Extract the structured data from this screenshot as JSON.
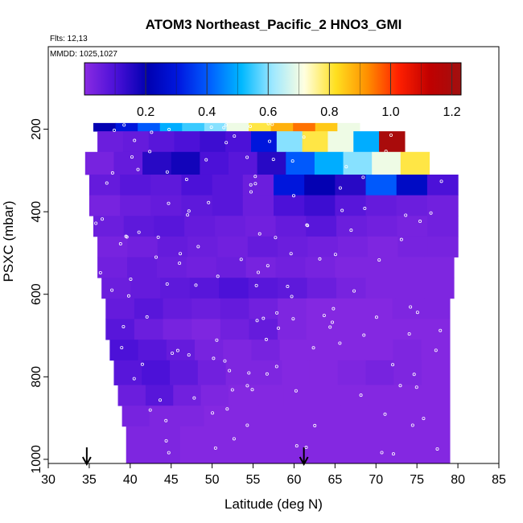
{
  "chart_data": {
    "type": "heatmap",
    "title": "ATOM3 Northeast_Pacific_2 HNO3_GMI",
    "annotations": [
      "Flts: 12,13",
      "MMDD: 1025,1027"
    ],
    "xlabel": "Latitude (deg N)",
    "ylabel": "PSXC (mbar)",
    "xlim": [
      30,
      85
    ],
    "ylim": [
      1010,
      0
    ],
    "x_ticks": [
      "30",
      "35",
      "40",
      "45",
      "50",
      "55",
      "60",
      "65",
      "70",
      "75",
      "80",
      "85"
    ],
    "y_ticks": [
      "200",
      "400",
      "600",
      "800",
      "1000"
    ],
    "colorbar": {
      "range": [
        0,
        1.23
      ],
      "ticks": [
        "0.2",
        "0.4",
        "0.6",
        "0.8",
        "1.0",
        "1.2"
      ],
      "colors": [
        "#8a2be2",
        "#4a10d8",
        "#0000b0",
        "#0018e0",
        "#0060ff",
        "#00b8ff",
        "#9ee8ff",
        "#ffffe0",
        "#ffe020",
        "#ff9000",
        "#ff2000",
        "#c00000",
        "#a01010"
      ]
    },
    "arrows_lat": [
      34.7,
      61.2
    ],
    "bands": [
      {
        "p_top": 185,
        "p_bot": 205,
        "lat_start": 35.5,
        "lat_end": 68.0,
        "values": [
          0.2,
          0.3,
          0.4,
          0.5,
          0.55,
          0.6,
          0.7,
          0.8,
          0.88,
          0.95,
          0.85,
          0.7
        ]
      },
      {
        "p_top": 205,
        "p_bot": 255,
        "lat_start": 36.0,
        "lat_end": 73.5,
        "values": [
          0.05,
          0.06,
          0.08,
          0.1,
          0.12,
          0.1,
          0.3,
          0.6,
          0.8,
          0.7,
          0.5,
          1.2
        ]
      },
      {
        "p_top": 255,
        "p_bot": 310,
        "lat_start": 34.5,
        "lat_end": 76.5,
        "values": [
          0.03,
          0.06,
          0.15,
          0.18,
          0.1,
          0.08,
          0.15,
          0.4,
          0.5,
          0.6,
          0.7,
          0.8
        ]
      },
      {
        "p_top": 310,
        "p_bot": 360,
        "lat_start": 35.0,
        "lat_end": 80.0,
        "values": [
          0.06,
          0.08,
          0.07,
          0.1,
          0.08,
          0.05,
          0.3,
          0.2,
          0.15,
          0.4,
          0.25,
          0.1
        ]
      },
      {
        "p_top": 360,
        "p_bot": 410,
        "lat_start": 35.0,
        "lat_end": 80.0,
        "values": [
          0.03,
          0.05,
          0.06,
          0.07,
          0.08,
          0.05,
          0.1,
          0.12,
          0.08,
          0.06,
          0.05,
          0.04
        ]
      },
      {
        "p_top": 410,
        "p_bot": 460,
        "lat_start": 35.5,
        "lat_end": 80.0,
        "values": [
          0.05,
          0.07,
          0.08,
          0.06,
          0.05,
          0.04,
          0.06,
          0.08,
          0.05,
          0.04,
          0.03,
          0.04
        ]
      },
      {
        "p_top": 460,
        "p_bot": 510,
        "lat_start": 36.0,
        "lat_end": 80.0,
        "values": [
          0.03,
          0.04,
          0.06,
          0.05,
          0.04,
          0.06,
          0.05,
          0.04,
          0.03,
          0.02,
          0.03,
          0.03
        ]
      },
      {
        "p_top": 510,
        "p_bot": 560,
        "lat_start": 36.0,
        "lat_end": 79.5,
        "values": [
          0.04,
          0.06,
          0.05,
          0.04,
          0.05,
          0.03,
          0.04,
          0.03,
          0.02,
          0.02,
          0.02,
          0.02
        ]
      },
      {
        "p_top": 560,
        "p_bot": 610,
        "lat_start": 36.5,
        "lat_end": 79.5,
        "values": [
          0.05,
          0.06,
          0.07,
          0.08,
          0.1,
          0.08,
          0.07,
          0.05,
          0.03,
          0.02,
          0.02,
          0.02
        ]
      },
      {
        "p_top": 610,
        "p_bot": 660,
        "lat_start": 37.0,
        "lat_end": 79.0,
        "values": [
          0.06,
          0.08,
          0.06,
          0.05,
          0.06,
          0.04,
          0.02,
          0.01,
          0.01,
          0.01,
          0.02,
          0.02
        ]
      },
      {
        "p_top": 660,
        "p_bot": 710,
        "lat_start": 37.0,
        "lat_end": 79.0,
        "values": [
          0.08,
          0.05,
          0.03,
          0.02,
          0.04,
          0.06,
          0.02,
          0.01,
          0.01,
          0.01,
          0.01,
          0.01
        ]
      },
      {
        "p_top": 710,
        "p_bot": 760,
        "lat_start": 37.5,
        "lat_end": 79.0,
        "values": [
          0.1,
          0.08,
          0.06,
          0.03,
          0.02,
          0.03,
          0.01,
          0.01,
          0.01,
          0.01,
          0.02,
          0.01
        ]
      },
      {
        "p_top": 760,
        "p_bot": 820,
        "lat_start": 38.0,
        "lat_end": 79.0,
        "values": [
          0.08,
          0.1,
          0.07,
          0.04,
          0.02,
          0.02,
          0.01,
          0.01,
          0.02,
          0.03,
          0.02,
          0.01
        ]
      },
      {
        "p_top": 820,
        "p_bot": 870,
        "lat_start": 38.5,
        "lat_end": 79.0,
        "values": [
          0.05,
          0.08,
          0.04,
          0.02,
          0.01,
          0.01,
          0.01,
          0.01,
          0.01,
          0.01,
          0.01,
          0.01
        ]
      },
      {
        "p_top": 870,
        "p_bot": 920,
        "lat_start": 39.0,
        "lat_end": 79.0,
        "values": [
          0.03,
          0.02,
          0.02,
          0.01,
          0.01,
          0.01,
          0.01,
          0.01,
          0.01,
          0.01,
          0.01,
          0.01
        ]
      },
      {
        "p_top": 920,
        "p_bot": 1010,
        "lat_start": 39.5,
        "lat_end": 79.0,
        "values": [
          0.02,
          0.02,
          0.01,
          0.01,
          0.01,
          0.01,
          0.01,
          0.01,
          0.01,
          0.01,
          0.01,
          0.01
        ]
      }
    ]
  }
}
